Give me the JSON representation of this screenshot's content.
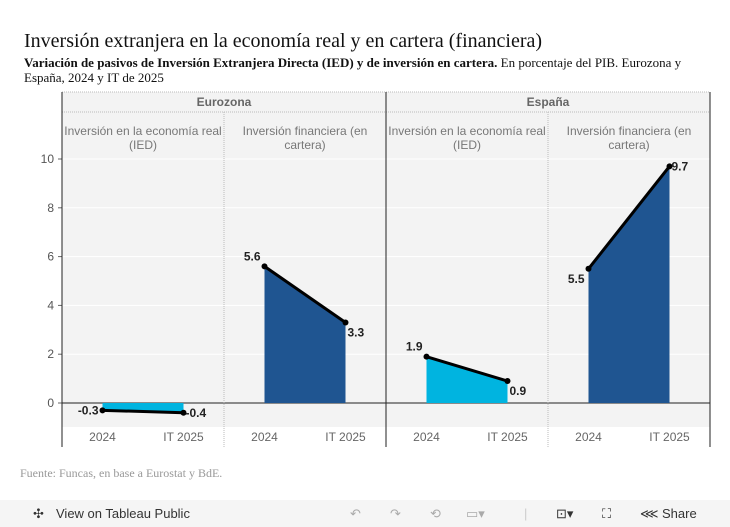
{
  "title": "Inversión extranjera en la economía real y en cartera (financiera)",
  "subtitle_bold": "Variación de pasivos de Inversión Extranjera Directa (IED) y de inversión en cartera.",
  "subtitle_rest": " En porcentaje del PIB. Eurozona y España, 2024 y IT de 2025",
  "source": "Fuente: Funcas, en base a Eurostat y BdE.",
  "toolbar": {
    "view_label": "View on Tableau Public",
    "share_label": "Share"
  },
  "colors": {
    "ied": "#00b4e0",
    "cartera": "#1f5591",
    "line": "#000000"
  },
  "chart_data": {
    "type": "area",
    "ylim": [
      -1,
      10.3
    ],
    "yticks": [
      0,
      2,
      4,
      6,
      8,
      10
    ],
    "categories": [
      "2024",
      "IT 2025"
    ],
    "panels": [
      {
        "name": "Eurozona",
        "series": [
          {
            "name": "Inversión en la economía real (IED)",
            "values": [
              -0.3,
              -0.4
            ],
            "labels": [
              "-0.3",
              "-0.4"
            ]
          },
          {
            "name": "Inversión financiera (en cartera)",
            "values": [
              5.6,
              3.3
            ],
            "labels": [
              "5.6",
              "3.3"
            ]
          }
        ]
      },
      {
        "name": "España",
        "series": [
          {
            "name": "Inversión en la economía real (IED)",
            "values": [
              1.9,
              0.9
            ],
            "labels": [
              "1.9",
              "0.9"
            ]
          },
          {
            "name": "Inversión financiera (en cartera)",
            "values": [
              5.5,
              9.7
            ],
            "labels": [
              "5.5",
              "9.7"
            ]
          }
        ]
      }
    ]
  }
}
